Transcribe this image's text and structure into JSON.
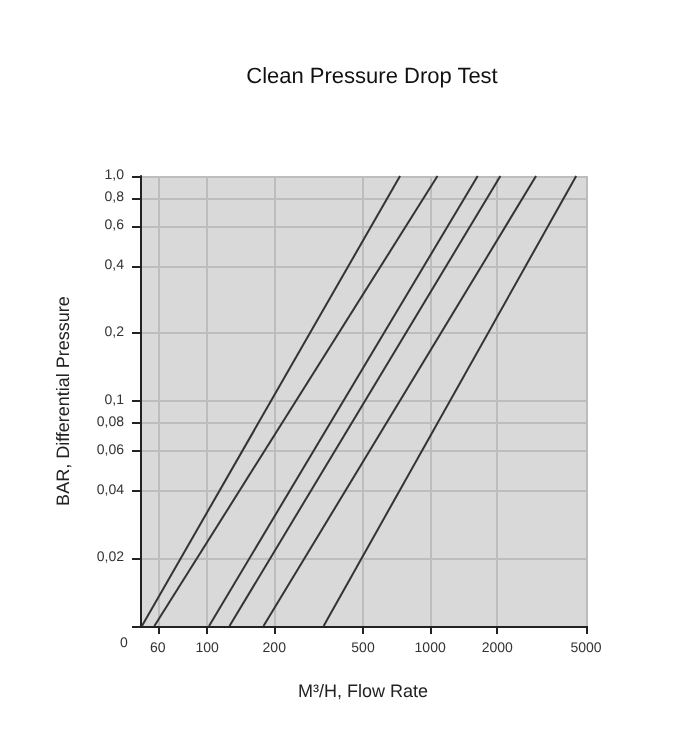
{
  "chart_data": {
    "type": "line",
    "title": "Clean Pressure Drop Test",
    "xlabel": "M³/H, Flow Rate",
    "ylabel": "BAR, Differential Pressure",
    "log": "xy",
    "grid": true,
    "marker": "none",
    "line_style": "solid",
    "xlim": [
      50,
      5000
    ],
    "annotations": [
      "0"
    ],
    "xticks": [
      60,
      100,
      200,
      500,
      1000,
      2000,
      5000
    ],
    "ylim": [
      0.01,
      1
    ],
    "yticks": [
      {
        "value": 0.01,
        "label": null
      },
      {
        "value": 0.02,
        "label": "0,02"
      },
      {
        "value": 0.04,
        "label": "0,04"
      },
      {
        "value": 0.06,
        "label": "0,06"
      },
      {
        "value": 0.08,
        "label": "0,08"
      },
      {
        "value": 0.1,
        "label": "0,1"
      },
      {
        "value": 0.2,
        "label": "0,2"
      },
      {
        "value": 0.4,
        "label": "0,4"
      },
      {
        "value": 0.6,
        "label": "0,6"
      },
      {
        "value": 0.8,
        "label": "0,8"
      },
      {
        "value": 1,
        "label": "1,0"
      }
    ],
    "series": [
      {
        "color": "#333333",
        "x": [
          51,
          733
        ],
        "values": [
          0.01,
          1
        ]
      },
      {
        "color": "#333333",
        "x": [
          58,
          1079
        ],
        "values": [
          0.01,
          1
        ]
      },
      {
        "color": "#333333",
        "x": [
          102,
          1634
        ],
        "values": [
          0.01,
          1
        ]
      },
      {
        "color": "#333333",
        "x": [
          126,
          2066
        ],
        "values": [
          0.01,
          1
        ]
      },
      {
        "color": "#333333",
        "x": [
          179,
          2985
        ],
        "values": [
          0.01,
          1
        ]
      },
      {
        "color": "#333333",
        "x": [
          333,
          4518
        ],
        "values": [
          0.01,
          1
        ]
      }
    ]
  }
}
